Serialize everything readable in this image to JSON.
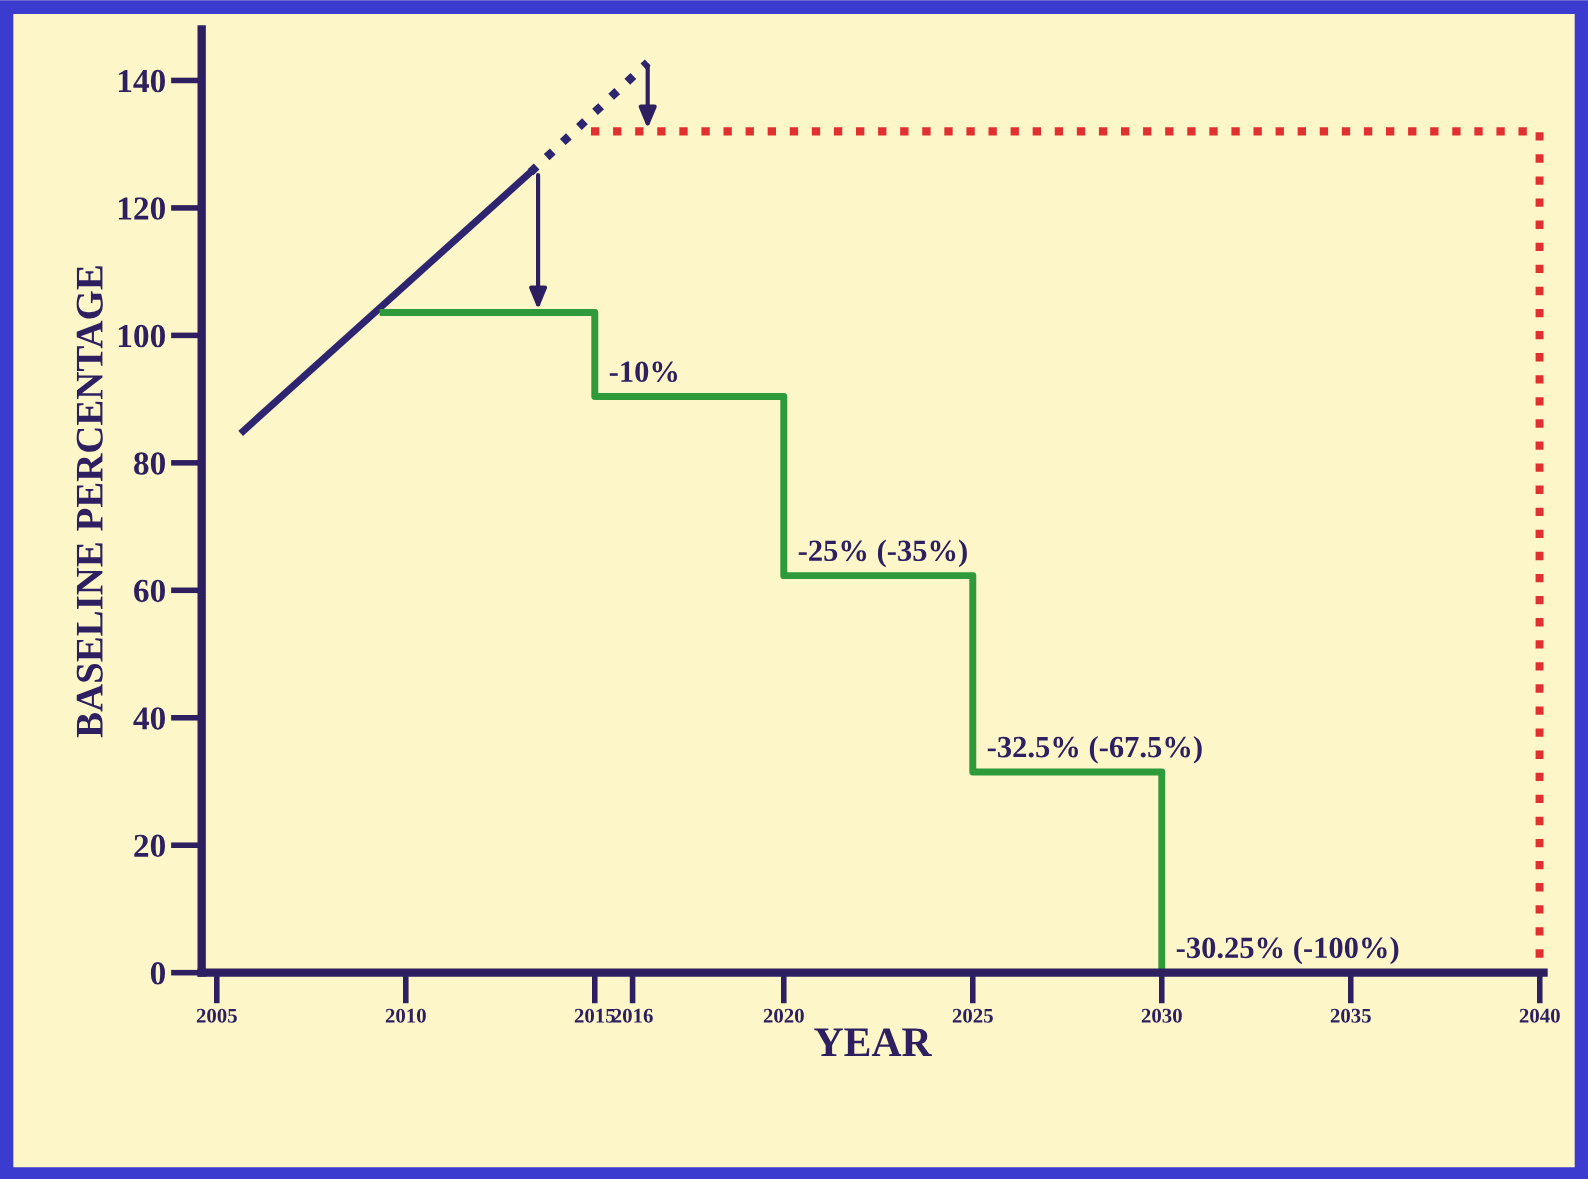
{
  "chart_data": {
    "type": "line",
    "xlabel": "YEAR",
    "ylabel": "BASELINE PERCENTAGE",
    "xlim": [
      2004.6,
      2040.1
    ],
    "ylim": [
      0,
      148
    ],
    "xticks": [
      2005,
      2010,
      2015,
      2016,
      2020,
      2025,
      2030,
      2035,
      2040
    ],
    "yticks": [
      0,
      20,
      40,
      60,
      80,
      100,
      120,
      140
    ],
    "grid": false,
    "legend": false,
    "marker": "none",
    "series": [
      {
        "color": "#2e2570",
        "line_style": "solid",
        "x": [
          2005.7,
          2013.3
        ],
        "values": [
          85,
          125.6
        ]
      },
      {
        "color": "#2e2570",
        "line_style": "dotted",
        "x": [
          2013.3,
          2016.4
        ],
        "values": [
          125.6,
          142.8
        ]
      },
      {
        "type": "step",
        "color": "#2e9a3a",
        "line_style": "solid",
        "x": [
          2009.4,
          2015,
          2020,
          2025,
          2030
        ],
        "values": [
          103.6,
          90.4,
          62.3,
          31.5,
          0
        ]
      },
      {
        "color": "#e03030",
        "line_style": "dotted",
        "x": [
          2014.9,
          2040,
          2040
        ],
        "values": [
          132,
          132,
          0
        ]
      }
    ],
    "annotations": [
      {
        "text": "-10%",
        "x": 2015,
        "y": 90.4
      },
      {
        "text": "-25% (-35%)",
        "x": 2020,
        "y": 62.3
      },
      {
        "text": "-32.5% (-67.5%)",
        "x": 2025,
        "y": 31.5
      },
      {
        "text": "-30.25% (-100%)",
        "x": 2030,
        "y": 0
      }
    ]
  }
}
